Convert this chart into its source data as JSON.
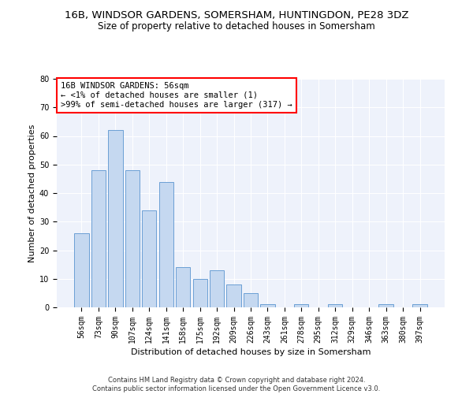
{
  "title": "16B, WINDSOR GARDENS, SOMERSHAM, HUNTINGDON, PE28 3DZ",
  "subtitle": "Size of property relative to detached houses in Somersham",
  "xlabel": "Distribution of detached houses by size in Somersham",
  "ylabel": "Number of detached properties",
  "categories": [
    "56sqm",
    "73sqm",
    "90sqm",
    "107sqm",
    "124sqm",
    "141sqm",
    "158sqm",
    "175sqm",
    "192sqm",
    "209sqm",
    "226sqm",
    "243sqm",
    "261sqm",
    "278sqm",
    "295sqm",
    "312sqm",
    "329sqm",
    "346sqm",
    "363sqm",
    "380sqm",
    "397sqm"
  ],
  "values": [
    26,
    48,
    62,
    48,
    34,
    44,
    14,
    10,
    13,
    8,
    5,
    1,
    0,
    1,
    0,
    1,
    0,
    0,
    1,
    0,
    1
  ],
  "bar_color": "#c5d8f0",
  "bar_edge_color": "#6b9fd4",
  "ylim": [
    0,
    80
  ],
  "yticks": [
    0,
    10,
    20,
    30,
    40,
    50,
    60,
    70,
    80
  ],
  "background_color": "#eef2fb",
  "annotation_text_line1": "16B WINDSOR GARDENS: 56sqm",
  "annotation_text_line2": "← <1% of detached houses are smaller (1)",
  "annotation_text_line3": ">99% of semi-detached houses are larger (317) →",
  "footer_line1": "Contains HM Land Registry data © Crown copyright and database right 2024.",
  "footer_line2": "Contains public sector information licensed under the Open Government Licence v3.0.",
  "title_fontsize": 9.5,
  "subtitle_fontsize": 8.5,
  "xlabel_fontsize": 8,
  "ylabel_fontsize": 8,
  "tick_fontsize": 7,
  "footer_fontsize": 6,
  "ann_fontsize": 7.5
}
